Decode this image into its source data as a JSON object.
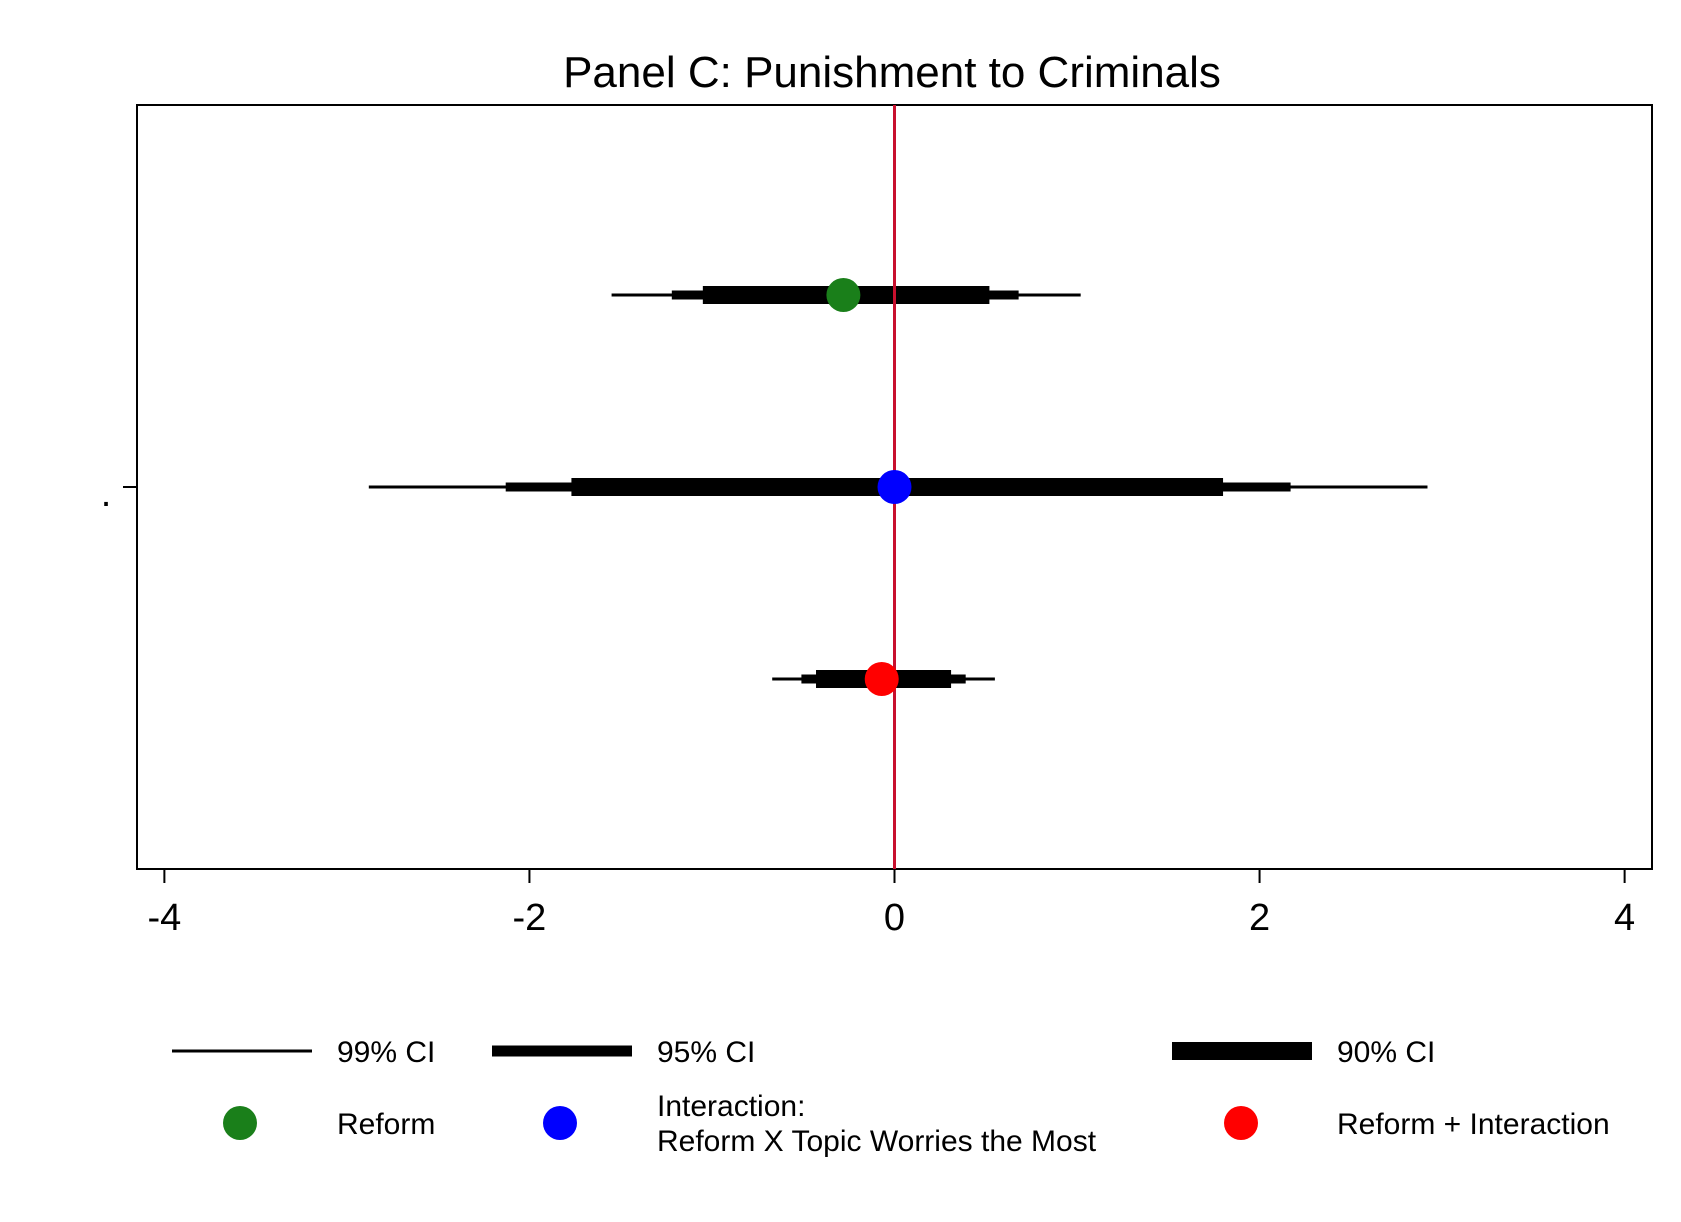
{
  "chart_data": {
    "type": "coefficient_plot",
    "title": "Panel C: Punishment to Criminals",
    "xlim": [
      -4.15,
      4.15
    ],
    "x_ticks": [
      -4,
      -2,
      0,
      2,
      4
    ],
    "x_tick_labels": [
      "-4",
      "-2",
      "0",
      "2",
      "4"
    ],
    "y_tick_labels": [
      "."
    ],
    "reference_line": {
      "x": 0,
      "color": "#c8102e"
    },
    "ci_levels": [
      {
        "name": "99% CI",
        "weight": "thin"
      },
      {
        "name": "95% CI",
        "weight": "medium"
      },
      {
        "name": "90% CI",
        "weight": "thick"
      }
    ],
    "series": [
      {
        "name": "Reform",
        "color": "#1a7f1a",
        "estimate": -0.28,
        "ci99": [
          -1.55,
          1.02
        ],
        "ci95": [
          -1.22,
          0.68
        ],
        "ci90": [
          -1.05,
          0.52
        ]
      },
      {
        "name": "Interaction:\nReform X Topic Worries the Most",
        "color": "#0000ff",
        "estimate": 0.0,
        "ci99": [
          -2.88,
          2.92
        ],
        "ci95": [
          -2.13,
          2.17
        ],
        "ci90": [
          -1.77,
          1.8
        ]
      },
      {
        "name": "Reform + Interaction",
        "color": "#ff0000",
        "estimate": -0.07,
        "ci99": [
          -0.67,
          0.55
        ],
        "ci95": [
          -0.51,
          0.39
        ],
        "ci90": [
          -0.43,
          0.31
        ]
      }
    ],
    "legend": {
      "placement": "bottom",
      "ci_labels": [
        "99% CI",
        "95% CI",
        "90% CI"
      ],
      "marker_labels": [
        "Reform",
        "Interaction:",
        "Reform X Topic Worries the Most",
        "Reform + Interaction"
      ]
    },
    "grid": false
  }
}
